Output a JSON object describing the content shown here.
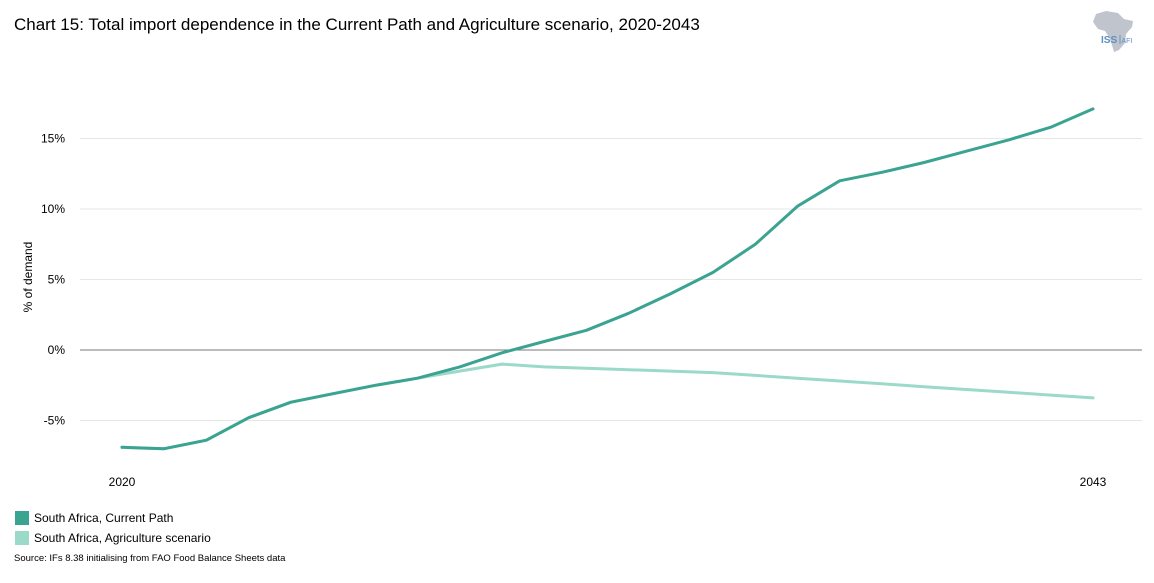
{
  "header": {
    "title": "Chart 15: Total import dependence in the Current Path and Agriculture scenario, 2020-2043"
  },
  "logo": {
    "text_main": "ISS",
    "text_sub": "AFI",
    "map_color": "#c0c4cc",
    "text_color": "#5d8fc2"
  },
  "colors": {
    "current_path": "#3aa391",
    "agriculture": "#9bd9c9",
    "grid": "#e6e6e6",
    "zero_line": "#7a7a7a"
  },
  "source": "Source: IFs 8.38 initialising from FAO Food Balance Sheets data",
  "chart_data": {
    "type": "line",
    "title": "Chart 15: Total import dependence in the Current Path and Agriculture scenario, 2020-2043",
    "xlabel": "",
    "ylabel": "% of demand",
    "x": [
      2020,
      2021,
      2022,
      2023,
      2024,
      2025,
      2026,
      2027,
      2028,
      2029,
      2030,
      2031,
      2032,
      2033,
      2034,
      2035,
      2036,
      2037,
      2038,
      2039,
      2040,
      2041,
      2042,
      2043
    ],
    "x_tick_labels": [
      "2020",
      "2043"
    ],
    "x_tick_values": [
      2020,
      2043
    ],
    "y_ticks": [
      -5,
      0,
      5,
      10,
      15
    ],
    "y_tick_labels": [
      "-5%",
      "0%",
      "5%",
      "10%",
      "15%"
    ],
    "ylim": [
      -7.5,
      17.5
    ],
    "grid": true,
    "legend_position": "bottom-left",
    "series": [
      {
        "name": "South Africa, Current Path",
        "color": "#3aa391",
        "values": [
          -6.9,
          -7.0,
          -6.4,
          -4.8,
          -3.7,
          -3.1,
          -2.5,
          -2.0,
          -1.2,
          -0.2,
          0.6,
          1.4,
          2.6,
          4.0,
          5.5,
          7.5,
          10.2,
          12.0,
          12.6,
          13.3,
          14.1,
          14.9,
          15.8,
          17.1
        ]
      },
      {
        "name": "South Africa, Agriculture scenario",
        "color": "#9bd9c9",
        "values": [
          -6.9,
          -7.0,
          -6.4,
          -4.8,
          -3.7,
          -3.1,
          -2.5,
          -2.0,
          -1.5,
          -1.0,
          -1.2,
          -1.3,
          -1.4,
          -1.5,
          -1.6,
          -1.8,
          -2.0,
          -2.2,
          -2.4,
          -2.6,
          -2.8,
          -3.0,
          -3.2,
          -3.4
        ]
      }
    ]
  }
}
